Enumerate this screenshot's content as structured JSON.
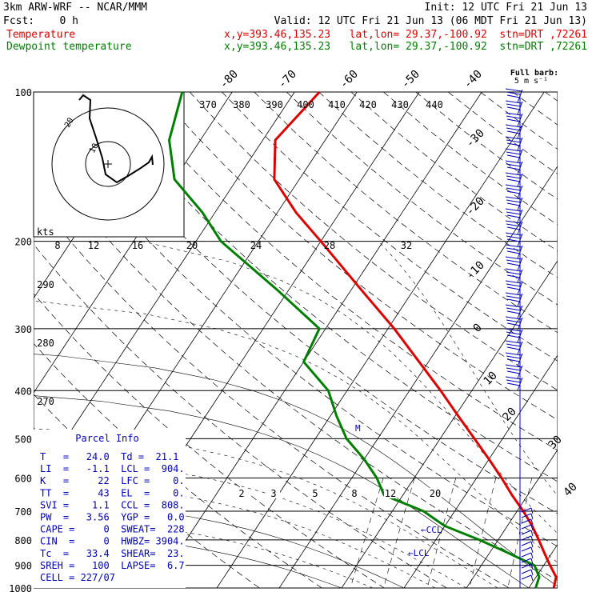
{
  "header": {
    "model": "3km ARW-WRF -- NCAR/MMM",
    "init": "Init: 12 UTC Fri 21 Jun 13",
    "fcst": "Fcst:    0 h",
    "valid": "Valid: 12 UTC Fri 21 Jun 13 (06 MDT Fri 21 Jun 13)",
    "temp_label": "Temperature",
    "temp_info": "x,y=393.46,135.23   lat,lon= 29.37,-100.92  stn=DRT ,72261",
    "dew_label": "Dewpoint temperature",
    "dew_info": "x,y=393.46,135.23   lat,lon= 29.37,-100.92  stn=DRT ,72261"
  },
  "colors": {
    "temperature": "#e00000",
    "dewpoint": "#008000",
    "parcel_info": "#0000c0",
    "barbs": "#0000c0"
  },
  "barb_legend": {
    "title": "Full barb:",
    "value": "5 m s⁻¹"
  },
  "pressure_levels": [
    "100",
    "200",
    "300",
    "400",
    "500",
    "600",
    "700",
    "800",
    "900",
    "1000"
  ],
  "isotherm_labels_top": [
    "-80",
    "-70",
    "-60",
    "-50",
    "-40"
  ],
  "isotherm_labels_right": [
    "-30",
    "-20",
    "-10",
    "0",
    "10",
    "20",
    "30",
    "40"
  ],
  "theta_labels_top": [
    "370",
    "380",
    "390",
    "400",
    "410",
    "420",
    "430",
    "440"
  ],
  "theta_labels_left": [
    "290",
    "280",
    "270"
  ],
  "mixing_ratio_labels": [
    "2",
    "3",
    "5",
    "8",
    "12",
    "20"
  ],
  "hodograph": {
    "unit_label": "kts",
    "scale_labels": [
      "8",
      "12",
      "16",
      "20",
      "24",
      "28",
      "32"
    ],
    "ring_labels": [
      "20",
      "10"
    ]
  },
  "markers": {
    "lcl": "LCL",
    "ccl": "CCL",
    "level_mark": "M"
  },
  "parcel_info": {
    "title": "Parcel Info",
    "lines": [
      "T   =   24.0  Td =  21.1",
      "LI  =   -1.1  LCL =  904.",
      "K   =     22  LFC =    0.",
      "TT  =     43  EL  =    0.",
      "SVI =    1.1  CCL =  808.",
      "PW  =   3.56  YGP =   0.0",
      "CAPE =     0  SWEAT=  228",
      "CIN  =     0  HWBZ= 3904.",
      "Tc  =   33.4  SHEAR=  23.",
      "SREH =   100  LAPSE=  6.7",
      "CELL = 227/07"
    ]
  },
  "chart_data": {
    "type": "line",
    "subtype": "skew-T log-p sounding",
    "xlabel": "",
    "ylabel": "",
    "ylim": [
      1000,
      100
    ],
    "y_scale": "log",
    "series": [
      {
        "name": "Temperature",
        "color": "#e00000",
        "points": [
          [
            1000,
            24.0
          ],
          [
            950,
            23.2
          ],
          [
            900,
            21.0
          ],
          [
            850,
            18.8
          ],
          [
            800,
            16.5
          ],
          [
            750,
            14.0
          ],
          [
            700,
            11.0
          ],
          [
            650,
            7.5
          ],
          [
            600,
            4.0
          ],
          [
            550,
            0.0
          ],
          [
            500,
            -4.5
          ],
          [
            450,
            -9.5
          ],
          [
            400,
            -15.0
          ],
          [
            350,
            -21.5
          ],
          [
            300,
            -29.0
          ],
          [
            250,
            -38.5
          ],
          [
            200,
            -50.0
          ],
          [
            175,
            -57.0
          ],
          [
            150,
            -64.0
          ],
          [
            125,
            -68.0
          ],
          [
            100,
            -66.0
          ]
        ]
      },
      {
        "name": "Dewpoint temperature",
        "color": "#008000",
        "points": [
          [
            1000,
            21.1
          ],
          [
            950,
            20.5
          ],
          [
            900,
            18.5
          ],
          [
            850,
            13.0
          ],
          [
            800,
            7.0
          ],
          [
            750,
            0.0
          ],
          [
            700,
            -5.0
          ],
          [
            650,
            -13.0
          ],
          [
            600,
            -16.0
          ],
          [
            550,
            -20.0
          ],
          [
            500,
            -25.0
          ],
          [
            450,
            -29.0
          ],
          [
            400,
            -33.0
          ],
          [
            350,
            -40.0
          ],
          [
            300,
            -41.0
          ],
          [
            250,
            -52.0
          ],
          [
            200,
            -66.0
          ],
          [
            175,
            -72.0
          ],
          [
            150,
            -80.0
          ],
          [
            125,
            -85.0
          ],
          [
            100,
            -88.0
          ]
        ]
      }
    ]
  }
}
